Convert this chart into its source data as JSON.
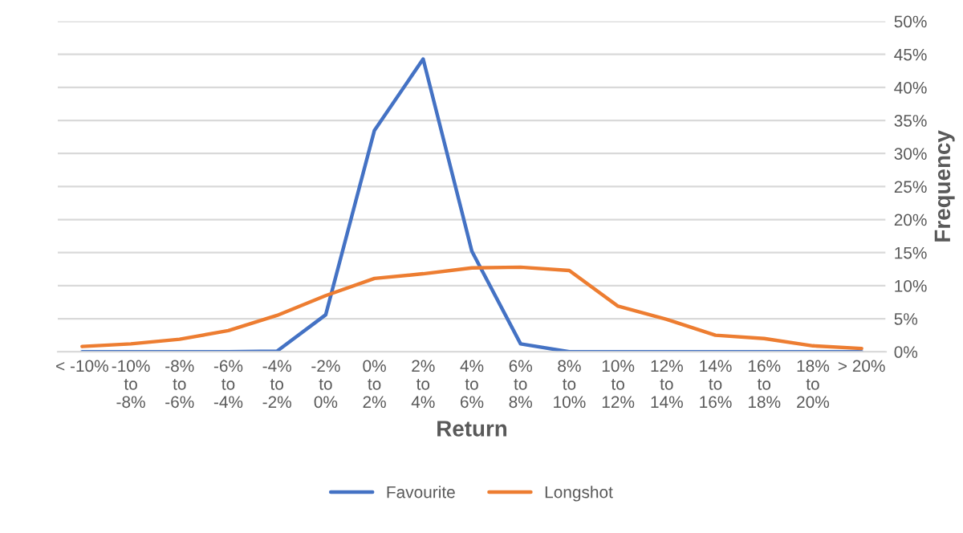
{
  "chart_data": {
    "type": "line",
    "xlabel": "Return",
    "ylabel": "Frequency",
    "categories": [
      "< -10%",
      "-10%\nto\n-8%",
      "-8%\nto\n-6%",
      "-6%\nto\n-4%",
      "-4%\nto\n-2%",
      "-2%\nto\n0%",
      "0%\nto\n2%",
      "2%\nto\n4%",
      "4%\nto\n6%",
      "6%\nto\n8%",
      "8%\nto\n10%",
      "10%\nto\n12%",
      "12%\nto\n14%",
      "14%\nto\n16%",
      "16%\nto\n18%",
      "18%\nto\n20%",
      "> 20%"
    ],
    "series": [
      {
        "name": "Favourite",
        "color": "#4472c4",
        "values": [
          0,
          0,
          0,
          0,
          0.1,
          5.6,
          33.5,
          44.3,
          15.2,
          1.2,
          0,
          0,
          0,
          0,
          0,
          0,
          0
        ]
      },
      {
        "name": "Longshot",
        "color": "#ed7d31",
        "values": [
          0.8,
          1.2,
          1.9,
          3.2,
          5.5,
          8.5,
          11.1,
          11.8,
          12.7,
          12.8,
          12.3,
          6.9,
          4.9,
          2.5,
          2.0,
          0.9,
          0.5
        ]
      }
    ],
    "ylim": [
      0,
      50
    ],
    "yticks": [
      {
        "value": 0,
        "label": "0%"
      },
      {
        "value": 5,
        "label": "5%"
      },
      {
        "value": 10,
        "label": "10%"
      },
      {
        "value": 15,
        "label": "15%"
      },
      {
        "value": 20,
        "label": "20%"
      },
      {
        "value": 25,
        "label": "25%"
      },
      {
        "value": 30,
        "label": "30%"
      },
      {
        "value": 35,
        "label": "35%"
      },
      {
        "value": 40,
        "label": "40%"
      },
      {
        "value": 45,
        "label": "45%"
      },
      {
        "value": 50,
        "label": "50%"
      }
    ],
    "grid": "y",
    "legend": "bottom",
    "marker": "none",
    "line_style": "solid"
  }
}
